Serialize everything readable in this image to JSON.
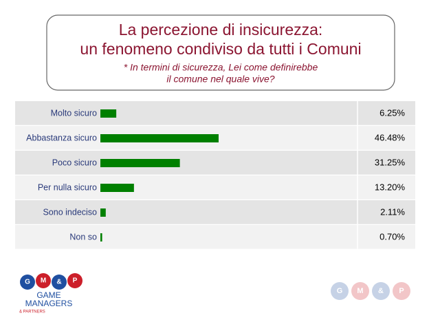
{
  "chart_data": {
    "type": "bar",
    "title": [
      "La percezione di insicurezza:",
      "un fenomeno condiviso da tutti i Comuni"
    ],
    "subtitle": [
      "* In termini di sicurezza, Lei come definirebbe",
      "il comune nel quale vive?"
    ],
    "categories": [
      "Molto sicuro",
      "Abbastanza sicuro",
      "Poco sicuro",
      "Per nulla sicuro",
      "Sono indeciso",
      "Non so"
    ],
    "values": [
      6.25,
      46.48,
      31.25,
      13.2,
      2.11,
      0.7
    ],
    "value_labels": [
      "6.25%",
      "46.48%",
      "31.25%",
      "13.20%",
      "2.11%",
      "0.70%"
    ],
    "color": "#008000",
    "logo": {
      "letters": [
        "G",
        "M",
        "&",
        "P"
      ],
      "name": [
        "GAME",
        "MANAGERS"
      ],
      "tagline": "& PARTNERS"
    }
  }
}
